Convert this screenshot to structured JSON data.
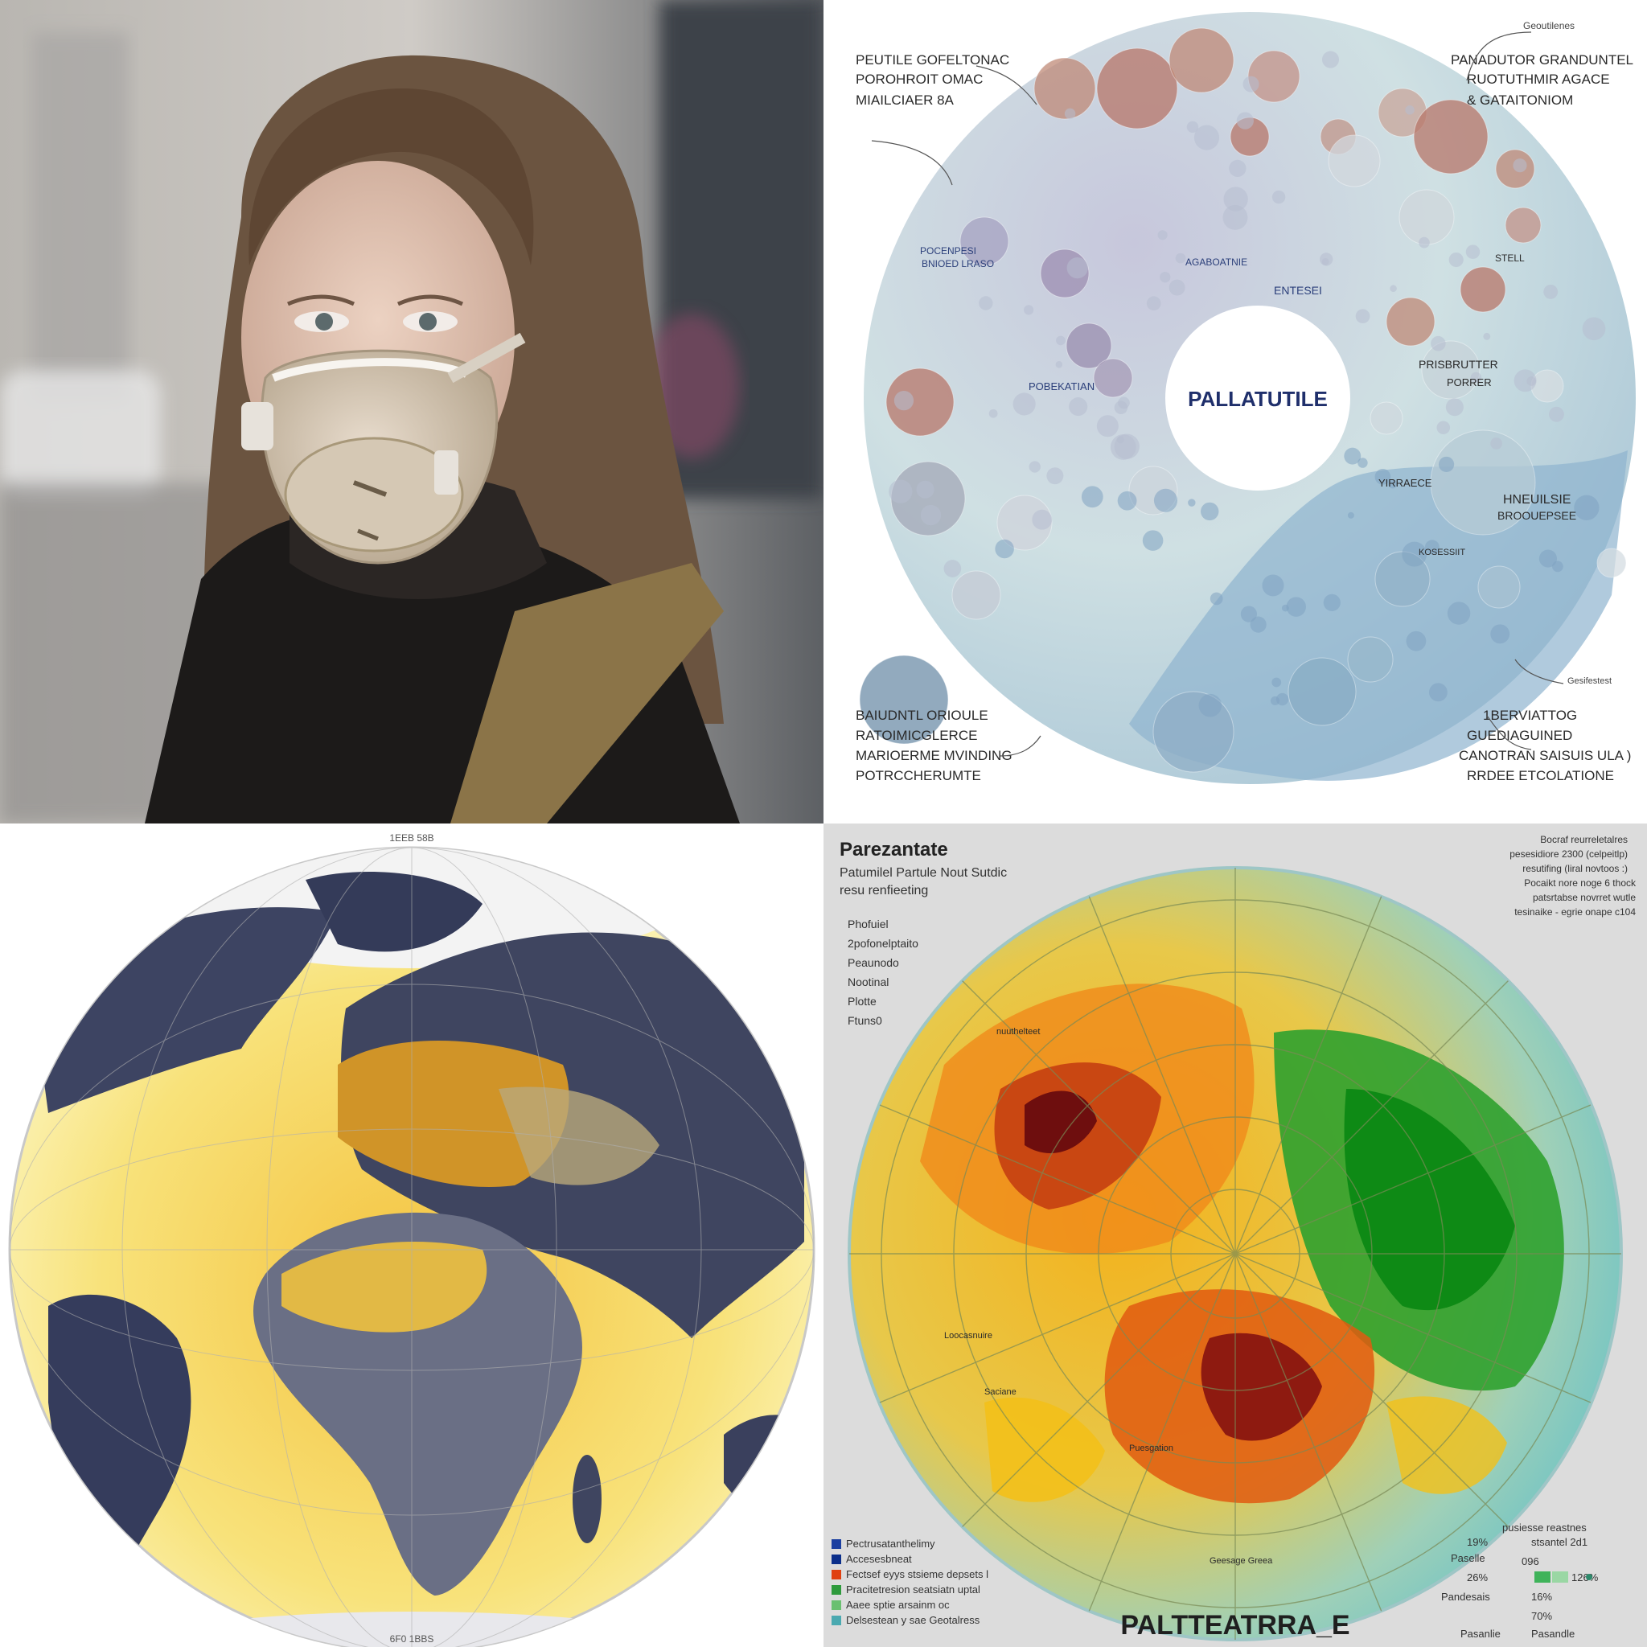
{
  "panels": {
    "photo": {
      "description_tag": "person wearing respirator mask"
    },
    "bubble_chart": {
      "center_label": "PALLATUTILE",
      "labels": {
        "top_left_1": "PEUTILE GOFELTONAC",
        "top_left_2": "POROHROIT OMAC",
        "top_left_3": "MIAILCIAER  8A",
        "top_right_1": "PANADUTOR GRANDUNTEL",
        "top_right_2": "RUOTUTHMIR AGACE",
        "top_right_3": "&  GATAITONIOM",
        "top_right_small": "Geoutilenes",
        "bottom_left_1": "BAIUDNTL ORIOULE",
        "bottom_left_2": "RATOIMICGLERCE",
        "bottom_left_3": "MARIOERME MVINDING",
        "bottom_left_4": "POTRCCHERUMTE",
        "bottom_right_1": "1BERVIATTOG",
        "bottom_right_2": "GUEDIAGUINED",
        "bottom_right_3": "CANOTRAN SAISUIS ULA )",
        "bottom_right_4": "RRDEE  ETCOLATIONE",
        "right_small": "Gesifestest",
        "inner_pobekatian": "POBEKATIAN",
        "inner_entesei": "ENTESEI",
        "inner_agaboatnie": "AGABOATNIE",
        "inner_prisbruter": "PRISBRUTTER",
        "inner_porerer": "PORRER",
        "inner_hnewisle": "HNEUILSIE",
        "inner_broqueesee": "BROOUEPSEE",
        "inner_ynrarece": "YIRRAECE",
        "inner_stell": "STELL",
        "inner_pocenpesi": "POCENPESI",
        "inner_bnioed": "BNIOED LRASO",
        "inner_kosesssit": "KOSESSIIT"
      }
    },
    "globe": {
      "top_label": "1EEB 58B",
      "bottom_label": "6F0 1BBS"
    },
    "polar_map": {
      "title": "Parezantate",
      "subtitle_1": "Patumilel Partule Nout Sutdic",
      "subtitle_2": "resu renfieeting",
      "left_list": [
        "Phofuiel",
        "2pofonelptaito",
        "Peaunodo",
        "Nootinal",
        "Plotte",
        "Ftuns0"
      ],
      "top_right_notes": [
        "Bocraf reurreletalres",
        "pesesidiore 2300  (celpeitlp)",
        "resutifing (liral novtoos  :)",
        "Pocaikt nore noge 6 thock",
        "patsrtabse novrret wutle",
        "tesinaike  -  egrie onape c104"
      ],
      "map_labels": [
        "nuuthelteet",
        "Loocasnuire",
        "Puesgation",
        "Saciane",
        "Geesage Greea"
      ],
      "legend": [
        {
          "color": "#1b3fa0",
          "label": "Pectrusatanthelimy"
        },
        {
          "color": "#0b2e8a",
          "label": "Accesesbneat"
        },
        {
          "color": "#e04010",
          "label": "Fectsef eyys stsieme depsets l"
        },
        {
          "color": "#2e9a3c",
          "label": "Pracitetresion seatsiatn uptal"
        },
        {
          "color": "#6ac070",
          "label": "Aaee sptie arsainm oc"
        },
        {
          "color": "#4aa9b0",
          "label": "Delsestean y sae Geotalress"
        }
      ],
      "bottom_stats": {
        "header": "pusiesse reastnes",
        "sub": "stsantel 2d1",
        "values": [
          "19%",
          "26%",
          "16%",
          "70%"
        ],
        "labels": [
          "Paselle",
          "Pandesais",
          "Pasanlie",
          "Pasandle"
        ],
        "mid_value": "126%",
        "mid_label": "096"
      },
      "footer": "PALTTEATRRA_E"
    }
  }
}
